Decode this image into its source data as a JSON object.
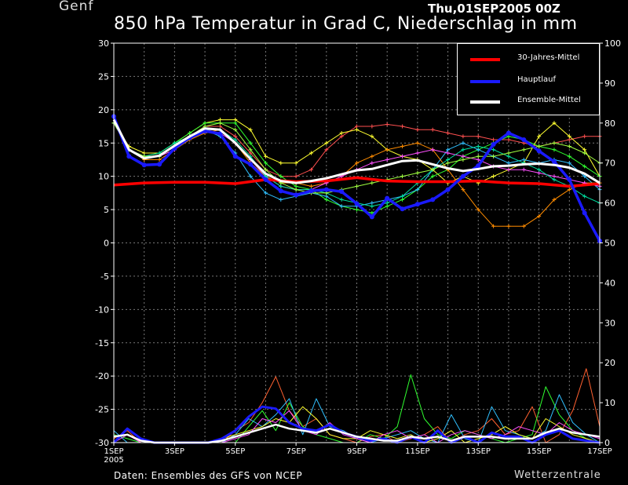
{
  "header": {
    "station": "Genf",
    "run": "Thu,01SEP2005 00Z",
    "title": "850 hPa Temperatur in Grad C, Niederschlag in mm"
  },
  "footer": {
    "source": "Daten: Ensembles des GFS von NCEP",
    "brand": "Wetterzentrale"
  },
  "legend": [
    {
      "label": "30-Jahres-Mittel",
      "color": "#ff0000"
    },
    {
      "label": "Hauptlauf",
      "color": "#1a1aff"
    },
    {
      "label": "Ensemble-Mittel",
      "color": "#ffffff"
    }
  ],
  "chart_data": {
    "type": "line",
    "x_ticks": [
      "1SEP",
      "3SEP",
      "5SEP",
      "7SEP",
      "9SEP",
      "11SEP",
      "13SEP",
      "15SEP",
      "17SEP"
    ],
    "x_year": "2005",
    "x_range_days": [
      0,
      16
    ],
    "y_left_range": [
      -30,
      30
    ],
    "y_left_ticks": [
      30,
      25,
      20,
      15,
      10,
      5,
      0,
      -5,
      -10,
      -15,
      -20,
      -25,
      -30
    ],
    "y_right_range": [
      0,
      100
    ],
    "y_right_ticks": [
      100,
      90,
      80,
      70,
      60,
      50,
      40,
      30,
      20,
      10,
      0
    ],
    "grid": true,
    "legend_position": "top-right",
    "temperature_series": [
      {
        "name": "30-Jahres-Mittel",
        "color": "#ff0000",
        "x": [
          0,
          1,
          2,
          3,
          4,
          5,
          6,
          7,
          8,
          9,
          10,
          11,
          12,
          13,
          14,
          15,
          16
        ],
        "y": [
          8.7,
          9.0,
          9.1,
          9.1,
          8.9,
          9.5,
          9.2,
          9.3,
          9.8,
          9.3,
          9.2,
          9.2,
          9.3,
          9.0,
          8.9,
          8.5,
          8.9
        ]
      },
      {
        "name": "Hauptlauf",
        "color": "#1a1aff",
        "x": [
          0,
          0.5,
          1,
          1.5,
          2,
          2.5,
          3,
          3.5,
          4,
          4.5,
          5,
          5.5,
          6,
          6.5,
          7,
          7.5,
          8,
          8.5,
          9,
          9.5,
          10,
          10.5,
          11,
          11.5,
          12,
          12.5,
          13,
          13.5,
          14,
          14.5,
          15,
          15.5,
          16
        ],
        "y": [
          19,
          13,
          11.7,
          11.8,
          14.2,
          15.8,
          16.8,
          16.4,
          13,
          11.8,
          9.5,
          7.8,
          7.2,
          7.8,
          8.0,
          7.7,
          5.9,
          3.9,
          6.7,
          5.1,
          5.8,
          6.5,
          8.0,
          10.0,
          11.6,
          14.8,
          16.5,
          15.5,
          13.8,
          12.2,
          9.5,
          4.5,
          0.3
        ]
      },
      {
        "name": "Ensemble-Mittel",
        "color": "#ffffff",
        "x": [
          0,
          0.5,
          1,
          1.5,
          2,
          2.5,
          3,
          3.5,
          4,
          4.5,
          5,
          5.5,
          6,
          6.5,
          7,
          7.5,
          8,
          8.5,
          9,
          9.5,
          10,
          10.5,
          11,
          11.5,
          12,
          12.5,
          13,
          13.5,
          14,
          14.5,
          15,
          15.5,
          16
        ],
        "y": [
          18.5,
          14,
          12.7,
          13.1,
          14.6,
          16.0,
          17.2,
          17.0,
          15.0,
          12.6,
          10.4,
          9.3,
          9.0,
          9.3,
          9.7,
          10.3,
          10.9,
          11.1,
          11.7,
          12.3,
          12.4,
          11.8,
          11.2,
          10.8,
          11.1,
          11.5,
          11.6,
          11.8,
          11.9,
          11.7,
          11.3,
          10.4,
          9.0
        ]
      }
    ],
    "ensemble_members": [
      {
        "color": "#ff5050",
        "y": [
          18,
          14,
          13,
          13,
          14,
          16,
          17.5,
          17.5,
          16,
          13.5,
          11,
          10,
          10,
          11,
          14,
          16,
          17.5,
          17.5,
          17.8,
          17.5,
          17,
          17,
          16.5,
          16,
          16,
          15.5,
          15.5,
          15,
          14.5,
          15,
          15.5,
          16,
          16
        ]
      },
      {
        "color": "#ffff30",
        "y": [
          18,
          14.5,
          13.5,
          13.5,
          15,
          16.5,
          18,
          18.5,
          18.5,
          17,
          13,
          12,
          12,
          13.5,
          15,
          16.5,
          17,
          16,
          14,
          13,
          12.5,
          11,
          9,
          10,
          9,
          10,
          11,
          12,
          16,
          18,
          16,
          14,
          10
        ]
      },
      {
        "color": "#30ff30",
        "y": [
          18,
          14,
          13,
          13.5,
          15,
          16.5,
          18,
          18,
          18,
          15,
          12,
          10,
          8.5,
          8,
          6.5,
          5.5,
          5,
          4.5,
          5.5,
          6.5,
          8,
          10,
          11,
          13,
          14,
          15,
          16,
          15.5,
          14.5,
          14,
          13,
          11.5,
          10
        ]
      },
      {
        "color": "#30c0ff",
        "y": [
          18,
          14,
          13,
          13,
          14.5,
          16,
          17,
          16,
          13.5,
          10,
          7.5,
          6.5,
          7,
          7.5,
          7,
          5.5,
          5.5,
          6,
          6.5,
          7,
          8,
          11,
          14,
          15,
          14,
          13,
          12,
          12.5,
          12,
          12.5,
          12,
          10,
          8
        ]
      },
      {
        "color": "#ff8c00",
        "y": [
          18,
          14,
          12.5,
          12.5,
          14,
          15.5,
          16.5,
          17,
          15,
          12,
          10,
          9,
          9,
          8.5,
          9,
          10,
          12,
          13,
          14,
          14.5,
          15,
          14,
          11,
          8,
          5,
          2.5,
          2.5,
          2.5,
          4,
          6.5,
          8,
          9,
          9
        ]
      },
      {
        "color": "#ff50ff",
        "y": [
          18,
          14,
          13,
          13,
          14,
          16,
          17,
          16.5,
          15,
          12.5,
          10,
          8.5,
          8,
          8,
          9,
          10,
          11,
          12,
          12.5,
          13,
          13.5,
          14,
          13.5,
          13,
          12.5,
          11.5,
          11,
          11,
          10.5,
          10,
          9.5,
          9,
          8.5
        ]
      },
      {
        "color": "#00e0a0",
        "y": [
          18,
          14,
          13,
          13.5,
          15,
          16,
          17,
          17,
          15.5,
          13,
          10,
          8.5,
          8,
          8,
          7.5,
          6.5,
          6,
          5.5,
          6,
          7,
          9,
          11,
          12.5,
          14,
          14.5,
          14,
          13,
          12,
          11,
          9.5,
          8.5,
          7,
          6
        ]
      },
      {
        "color": "#a0ff40",
        "y": [
          18,
          14,
          13,
          13,
          14.5,
          16,
          17.5,
          18,
          17,
          14,
          11,
          9,
          8,
          7.5,
          7.5,
          8,
          8.5,
          9,
          9.5,
          10,
          10.5,
          11,
          12,
          12.5,
          13,
          13,
          13.5,
          14,
          14.5,
          15,
          14.5,
          13.5,
          12
        ]
      }
    ],
    "precipitation_series": [
      {
        "name": "Hauptlauf",
        "color": "#1a1aff",
        "y": [
          0,
          3.5,
          1,
          0,
          0,
          0,
          0,
          0,
          1,
          3,
          6.5,
          9,
          8.5,
          5,
          3.5,
          3,
          4.5,
          2.5,
          1.5,
          0.5,
          1,
          0,
          1.5,
          0,
          3,
          0,
          1.5,
          0,
          2.5,
          1.5,
          1.5,
          0,
          2,
          3,
          1,
          0.5,
          0
        ]
      },
      {
        "name": "Ensemble-Mittel",
        "color": "#ffffff",
        "y": [
          1.5,
          2,
          0.5,
          0,
          0,
          0,
          0,
          0,
          0.5,
          1.5,
          2.5,
          3.5,
          4.5,
          3.5,
          3,
          2.5,
          3.5,
          2.5,
          1.5,
          1,
          0.5,
          0.5,
          1.5,
          1,
          1.5,
          0.5,
          1.5,
          1.5,
          1.5,
          1,
          1,
          1,
          2.5,
          3.5,
          2.5,
          2,
          1.5
        ]
      }
    ],
    "precipitation_members": [
      {
        "color": "#ff6030",
        "y": [
          1,
          3,
          0,
          0,
          0,
          0,
          0,
          0,
          0,
          3,
          5,
          10,
          16.5,
          8,
          4,
          6,
          2,
          1,
          0,
          1.5,
          2,
          0,
          1,
          2,
          4,
          0,
          2,
          3,
          6,
          2,
          3,
          9,
          0,
          2,
          8,
          18.5,
          4
        ]
      },
      {
        "color": "#30ff30",
        "y": [
          2,
          1,
          0,
          0,
          0,
          0,
          0,
          0,
          0,
          0,
          4,
          8,
          3,
          10,
          4,
          2,
          1,
          0,
          0,
          2,
          1,
          4,
          17,
          6,
          2,
          1,
          3,
          2,
          1,
          0,
          1,
          2,
          14,
          7,
          3,
          1,
          0
        ]
      },
      {
        "color": "#30c0ff",
        "y": [
          3,
          0,
          0,
          0,
          0,
          0,
          0,
          0,
          0,
          2,
          6,
          4,
          7,
          11,
          2,
          11,
          4,
          3,
          1,
          0,
          1,
          2,
          3,
          1,
          0,
          7,
          1,
          0,
          9,
          3,
          2,
          1,
          3,
          12,
          5,
          2,
          0
        ]
      },
      {
        "color": "#ffff30",
        "y": [
          0,
          0,
          0,
          0,
          0,
          0,
          0,
          0,
          1,
          2,
          3,
          4,
          6,
          5,
          9,
          6,
          2,
          1,
          1,
          3,
          2,
          1,
          2,
          0,
          1,
          3,
          0,
          1,
          2,
          4,
          2,
          1,
          6,
          4,
          2,
          1,
          0
        ]
      },
      {
        "color": "#ff50ff",
        "y": [
          0,
          2,
          0,
          0,
          0,
          0,
          0,
          0,
          0,
          1,
          2,
          6,
          5,
          8,
          3,
          2,
          5,
          2,
          1,
          0,
          2,
          3,
          1,
          2,
          0,
          2,
          3,
          2,
          1,
          2,
          4,
          3,
          2,
          5,
          3,
          2,
          1
        ]
      }
    ]
  }
}
